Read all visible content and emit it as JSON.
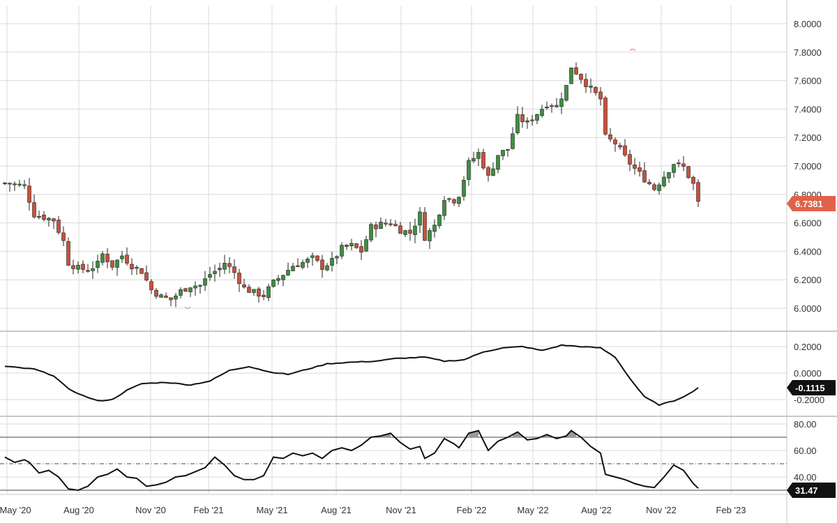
{
  "colors": {
    "up": "#3e8e41",
    "down": "#c9503c",
    "grid": "#d9d9d9",
    "divider": "#c8c8c8",
    "line": "#111111",
    "price_tag": "#e0624a",
    "indicator_tag": "#111111",
    "overbought_fill": "#9a9a9a",
    "background": "#ffffff"
  },
  "x_axis": {
    "labels": [
      "May '20",
      "Aug '20",
      "Nov '20",
      "Feb '21",
      "May '21",
      "Aug '21",
      "Nov '21",
      "Feb '22",
      "May '22",
      "Aug '22",
      "Nov '22",
      "Feb '23"
    ],
    "range": [
      0,
      140
    ]
  },
  "chart_data": [
    {
      "type": "candlestick",
      "name": "price",
      "ylim": [
        5.8,
        8.1
      ],
      "yticks": [
        "8.0000",
        "7.8000",
        "7.6000",
        "7.4000",
        "7.2000",
        "7.0000",
        "6.8000",
        "6.6000",
        "6.4000",
        "6.2000",
        "6.0000"
      ],
      "ytick_values": [
        8.0,
        7.8,
        7.6,
        7.4,
        7.2,
        7.0,
        6.8,
        6.6,
        6.4,
        6.2,
        6.0
      ],
      "last_value_label": "6.7381",
      "anchor_points": [
        [
          0,
          6.88
        ],
        [
          2,
          6.87
        ],
        [
          4,
          6.86
        ],
        [
          6,
          6.66
        ],
        [
          8,
          6.64
        ],
        [
          10,
          6.62
        ],
        [
          12,
          6.47
        ],
        [
          13,
          6.32
        ],
        [
          15,
          6.28
        ],
        [
          17,
          6.27
        ],
        [
          19,
          6.31
        ],
        [
          20,
          6.38
        ],
        [
          22,
          6.3
        ],
        [
          24,
          6.37
        ],
        [
          26,
          6.3
        ],
        [
          28,
          6.26
        ],
        [
          30,
          6.13
        ],
        [
          32,
          6.08
        ],
        [
          34,
          6.06
        ],
        [
          36,
          6.12
        ],
        [
          38,
          6.16
        ],
        [
          40,
          6.16
        ],
        [
          42,
          6.24
        ],
        [
          44,
          6.28
        ],
        [
          45,
          6.32
        ],
        [
          47,
          6.25
        ],
        [
          49,
          6.14
        ],
        [
          51,
          6.11
        ],
        [
          53,
          6.09
        ],
        [
          55,
          6.18
        ],
        [
          57,
          6.24
        ],
        [
          59,
          6.3
        ],
        [
          61,
          6.32
        ],
        [
          63,
          6.35
        ],
        [
          65,
          6.29
        ],
        [
          67,
          6.33
        ],
        [
          69,
          6.42
        ],
        [
          71,
          6.44
        ],
        [
          73,
          6.4
        ],
        [
          75,
          6.57
        ],
        [
          77,
          6.59
        ],
        [
          79,
          6.6
        ],
        [
          81,
          6.55
        ],
        [
          83,
          6.53
        ],
        [
          85,
          6.66
        ],
        [
          86,
          6.5
        ],
        [
          88,
          6.58
        ],
        [
          90,
          6.78
        ],
        [
          92,
          6.76
        ],
        [
          93,
          6.8
        ],
        [
          95,
          7.02
        ],
        [
          97,
          7.09
        ],
        [
          99,
          6.92
        ],
        [
          101,
          7.08
        ],
        [
          103,
          7.12
        ],
        [
          105,
          7.34
        ],
        [
          107,
          7.3
        ],
        [
          109,
          7.37
        ],
        [
          111,
          7.44
        ],
        [
          113,
          7.42
        ],
        [
          115,
          7.56
        ],
        [
          116,
          7.7
        ],
        [
          118,
          7.62
        ],
        [
          120,
          7.54
        ],
        [
          122,
          7.47
        ],
        [
          123,
          7.2
        ],
        [
          125,
          7.16
        ],
        [
          127,
          7.06
        ],
        [
          129,
          6.98
        ],
        [
          131,
          6.91
        ],
        [
          133,
          6.84
        ],
        [
          135,
          6.93
        ],
        [
          137,
          7.02
        ],
        [
          139,
          6.99
        ],
        [
          141,
          6.87
        ],
        [
          142,
          6.74
        ]
      ]
    },
    {
      "type": "line",
      "name": "oscillator",
      "ylim": [
        -0.25,
        0.25
      ],
      "yticks": [
        "0.2000",
        "0.0000",
        "-0.2000"
      ],
      "ytick_values": [
        0.2,
        0.0,
        -0.2
      ],
      "last_value_label": "-0.1115",
      "points": [
        [
          0,
          0.05
        ],
        [
          6,
          0.03
        ],
        [
          10,
          -0.02
        ],
        [
          13,
          -0.12
        ],
        [
          16,
          -0.17
        ],
        [
          19,
          -0.21
        ],
        [
          22,
          -0.2
        ],
        [
          25,
          -0.13
        ],
        [
          28,
          -0.08
        ],
        [
          33,
          -0.07
        ],
        [
          38,
          -0.09
        ],
        [
          42,
          -0.06
        ],
        [
          46,
          0.02
        ],
        [
          50,
          0.05
        ],
        [
          54,
          0.01
        ],
        [
          58,
          -0.01
        ],
        [
          62,
          0.03
        ],
        [
          66,
          0.07
        ],
        [
          70,
          0.08
        ],
        [
          76,
          0.09
        ],
        [
          80,
          0.11
        ],
        [
          86,
          0.12
        ],
        [
          90,
          0.09
        ],
        [
          94,
          0.1
        ],
        [
          98,
          0.16
        ],
        [
          102,
          0.19
        ],
        [
          106,
          0.2
        ],
        [
          110,
          0.17
        ],
        [
          114,
          0.21
        ],
        [
          118,
          0.2
        ],
        [
          122,
          0.19
        ],
        [
          125,
          0.12
        ],
        [
          128,
          -0.04
        ],
        [
          131,
          -0.18
        ],
        [
          134,
          -0.24
        ],
        [
          137,
          -0.21
        ],
        [
          140,
          -0.16
        ],
        [
          142,
          -0.11
        ]
      ]
    },
    {
      "type": "line",
      "name": "rsi",
      "ylim": [
        29,
        88
      ],
      "yticks": [
        "80.00",
        "60.00",
        "40.00"
      ],
      "ytick_values": [
        80,
        60,
        40
      ],
      "reference_lines": [
        70,
        50,
        30
      ],
      "last_value_label": "31.47",
      "points": [
        [
          0,
          55
        ],
        [
          2,
          51
        ],
        [
          4,
          53
        ],
        [
          5,
          51
        ],
        [
          7,
          43
        ],
        [
          9,
          45
        ],
        [
          11,
          40
        ],
        [
          13,
          31
        ],
        [
          15,
          30
        ],
        [
          17,
          33
        ],
        [
          19,
          40
        ],
        [
          21,
          42
        ],
        [
          23,
          46
        ],
        [
          25,
          40
        ],
        [
          27,
          39
        ],
        [
          29,
          33
        ],
        [
          31,
          34
        ],
        [
          33,
          36
        ],
        [
          35,
          40
        ],
        [
          37,
          41
        ],
        [
          39,
          44
        ],
        [
          41,
          47
        ],
        [
          43,
          55
        ],
        [
          45,
          49
        ],
        [
          47,
          41
        ],
        [
          49,
          38
        ],
        [
          51,
          38
        ],
        [
          53,
          41
        ],
        [
          55,
          55
        ],
        [
          57,
          54
        ],
        [
          59,
          58
        ],
        [
          61,
          56
        ],
        [
          63,
          58
        ],
        [
          65,
          54
        ],
        [
          67,
          60
        ],
        [
          69,
          62
        ],
        [
          71,
          60
        ],
        [
          73,
          64
        ],
        [
          75,
          70
        ],
        [
          77,
          71
        ],
        [
          79,
          73
        ],
        [
          81,
          66
        ],
        [
          83,
          61
        ],
        [
          85,
          63
        ],
        [
          86,
          54
        ],
        [
          88,
          58
        ],
        [
          90,
          69
        ],
        [
          92,
          65
        ],
        [
          93,
          62
        ],
        [
          95,
          73
        ],
        [
          97,
          75
        ],
        [
          99,
          60
        ],
        [
          101,
          67
        ],
        [
          103,
          70
        ],
        [
          105,
          74
        ],
        [
          107,
          68
        ],
        [
          109,
          69
        ],
        [
          111,
          72
        ],
        [
          113,
          69
        ],
        [
          115,
          71
        ],
        [
          116,
          75
        ],
        [
          118,
          70
        ],
        [
          120,
          63
        ],
        [
          122,
          58
        ],
        [
          123,
          42
        ],
        [
          125,
          40
        ],
        [
          127,
          38
        ],
        [
          129,
          35
        ],
        [
          131,
          33
        ],
        [
          133,
          32
        ],
        [
          135,
          40
        ],
        [
          137,
          49
        ],
        [
          139,
          45
        ],
        [
          141,
          35
        ],
        [
          142,
          31.47
        ]
      ]
    }
  ]
}
